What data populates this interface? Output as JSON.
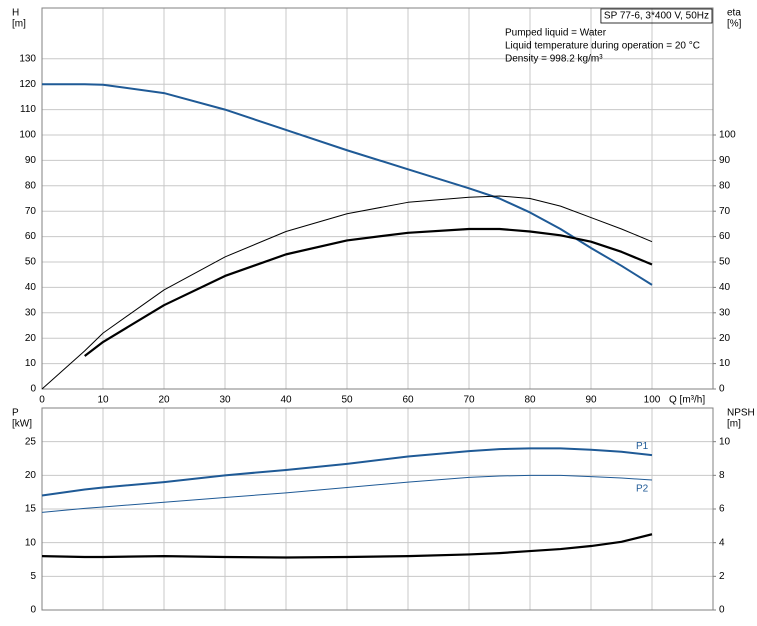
{
  "chart_data": [
    {
      "type": "line",
      "title": "SP 77-6, 3*400 V, 50Hz",
      "annotations": [
        "Pumped liquid = Water",
        "Liquid temperature during operation = 20 °C",
        "Density = 998.2 kg/m³"
      ],
      "ylabel": [
        "H",
        "[m]"
      ],
      "y2label": [
        "eta",
        "[%]"
      ],
      "xlabel": "Q [m³/h]",
      "x": [
        0,
        7,
        10,
        20,
        30,
        40,
        50,
        60,
        70,
        75,
        80,
        85,
        90,
        95,
        100
      ],
      "xlim": [
        0,
        110
      ],
      "xticks": [
        0,
        10,
        20,
        30,
        40,
        50,
        60,
        70,
        80,
        90,
        100
      ],
      "ylim": [
        0,
        150
      ],
      "yticks": [
        0,
        10,
        20,
        30,
        40,
        50,
        60,
        70,
        80,
        90,
        100,
        110,
        120,
        130
      ],
      "y2lim": [
        0,
        150
      ],
      "y2ticks": [
        0,
        10,
        20,
        30,
        40,
        50,
        60,
        70,
        80,
        90,
        100
      ],
      "grid": true,
      "series": [
        {
          "color": "#1f5a96",
          "line_width": 2,
          "values": [
            120,
            120,
            119.8,
            116.5,
            110,
            102,
            94,
            86.5,
            79,
            75,
            69.5,
            63,
            55.5,
            48.5,
            41
          ]
        },
        {
          "color": "#000000",
          "line_width": 1,
          "axis": "y2",
          "values": [
            0,
            15,
            22,
            39,
            52,
            62,
            69,
            73.5,
            75.5,
            76,
            75,
            72,
            67.5,
            63,
            58
          ]
        },
        {
          "color": "#000000",
          "line_width": 2.2,
          "axis": "y2",
          "values": [
            null,
            13,
            18.5,
            33,
            44.5,
            53,
            58.5,
            61.5,
            63,
            63,
            62,
            60.5,
            58,
            54,
            49
          ]
        }
      ]
    },
    {
      "type": "line",
      "ylabel": [
        "P",
        "[kW]"
      ],
      "y2label": [
        "NPSH",
        "[m]"
      ],
      "x": [
        0,
        7,
        10,
        20,
        30,
        40,
        50,
        60,
        70,
        75,
        80,
        85,
        90,
        95,
        100
      ],
      "xlim": [
        0,
        110
      ],
      "ylim": [
        0,
        30
      ],
      "yticks": [
        0,
        5,
        10,
        15,
        20,
        25
      ],
      "y2lim": [
        0,
        12
      ],
      "y2ticks": [
        0,
        2,
        4,
        6,
        8,
        10
      ],
      "grid": true,
      "series": [
        {
          "name": "P1",
          "color": "#1f5a96",
          "line_width": 2,
          "values": [
            17,
            17.9,
            18.2,
            19,
            20,
            20.8,
            21.7,
            22.8,
            23.6,
            23.9,
            24,
            24,
            23.8,
            23.5,
            23
          ]
        },
        {
          "name": "P2",
          "color": "#1f5a96",
          "line_width": 1,
          "values": [
            14.5,
            15.1,
            15.3,
            16,
            16.7,
            17.4,
            18.2,
            19,
            19.7,
            19.9,
            20,
            20,
            19.8,
            19.6,
            19.3
          ]
        },
        {
          "color": "#000000",
          "line_width": 2.2,
          "axis": "y2",
          "values": [
            3.2,
            3.15,
            3.15,
            3.2,
            3.15,
            3.12,
            3.15,
            3.2,
            3.3,
            3.38,
            3.5,
            3.62,
            3.8,
            4.05,
            4.5
          ]
        }
      ]
    }
  ]
}
